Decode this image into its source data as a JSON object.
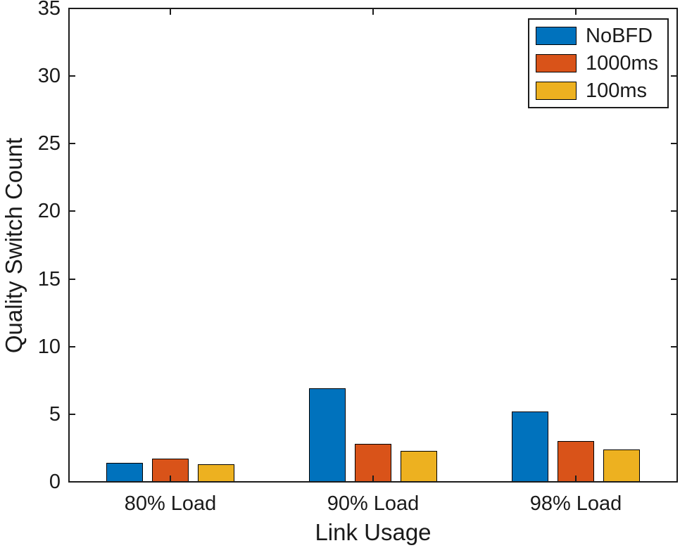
{
  "chart_data": {
    "type": "bar",
    "title": "",
    "xlabel": "Link Usage",
    "ylabel": "Quality Switch Count",
    "categories": [
      "80% Load",
      "90% Load",
      "98% Load"
    ],
    "series": [
      {
        "name": "NoBFD",
        "color": "#0072BD",
        "values": [
          1.4,
          6.9,
          5.2
        ]
      },
      {
        "name": "1000ms",
        "color": "#D95319",
        "values": [
          1.7,
          2.8,
          3.0
        ]
      },
      {
        "name": "100ms",
        "color": "#EDB120",
        "values": [
          1.3,
          2.3,
          2.4
        ]
      }
    ],
    "ylim": [
      0,
      35
    ],
    "yticks": [
      0,
      5,
      10,
      15,
      20,
      25,
      30,
      35
    ],
    "grid": false,
    "legend_position": "top-right",
    "bar_edge_color": "#000000",
    "axis_color": "#1c1c1c",
    "background": "#ffffff"
  }
}
